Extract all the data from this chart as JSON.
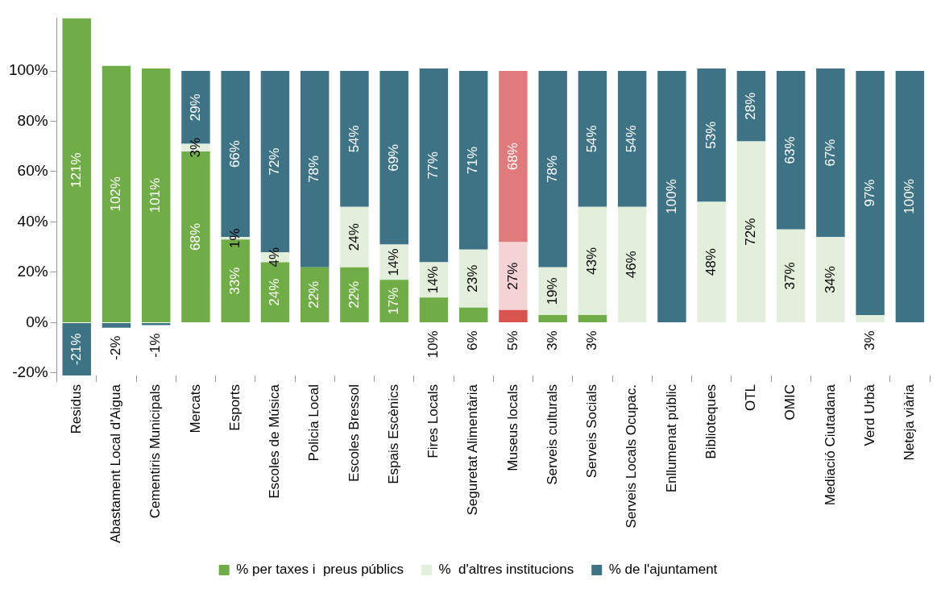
{
  "chart_data": {
    "type": "bar",
    "stacked": true,
    "categories": [
      "Residus",
      "Abastament Local d'Aigua",
      "Cementiris Municipals",
      "Mercats",
      "Esports",
      "Escoles de Música",
      "Policia Local",
      "Escoles Bressol",
      "Espais Escènics",
      "Fires Locals",
      "Seguretat Alimentària",
      "Museus locals",
      "Serveis culturals",
      "Serveis Socials",
      "Serveis Locals Ocupac.",
      "Enllumenat públic",
      "Biblioteques",
      "OTL",
      "OMIC",
      "Mediació Ciutadana",
      "Verd Urbà",
      "Neteja viària"
    ],
    "series": [
      {
        "name": "% per taxes i  preus públics",
        "color": "#70ad47",
        "colors": [
          "#70ad47",
          "#70ad47",
          "#70ad47",
          "#70ad47",
          "#70ad47",
          "#70ad47",
          "#70ad47",
          "#70ad47",
          "#70ad47",
          "#70ad47",
          "#70ad47",
          "#d9534f",
          "#70ad47",
          "#70ad47",
          "#70ad47",
          "#70ad47",
          "#70ad47",
          "#70ad47",
          "#70ad47",
          "#70ad47",
          "#70ad47",
          "#70ad47"
        ],
        "values": [
          121,
          102,
          101,
          68,
          33,
          24,
          22,
          22,
          17,
          10,
          6,
          5,
          3,
          3,
          0,
          0,
          0,
          0,
          0,
          0,
          0,
          0
        ],
        "value_labels": [
          "121%",
          "102%",
          "101%",
          "68%",
          "33%",
          "24%",
          "22%",
          "22%",
          "17%",
          "10%",
          "6%",
          "5%",
          "3%",
          "3%",
          null,
          null,
          null,
          null,
          null,
          null,
          null,
          null
        ]
      },
      {
        "name": "%  d'altres institucions",
        "color": "#e2efda",
        "colors": [
          "#e2efda",
          "#e2efda",
          "#e2efda",
          "#e2efda",
          "#e2efda",
          "#e2efda",
          "#e2efda",
          "#e2efda",
          "#e2efda",
          "#e2efda",
          "#e2efda",
          "#f5d3d5",
          "#e2efda",
          "#e2efda",
          "#e2efda",
          "#e2efda",
          "#e2efda",
          "#e2efda",
          "#e2efda",
          "#e2efda",
          "#e2efda",
          "#e2efda"
        ],
        "values": [
          0,
          0,
          0,
          3,
          1,
          4,
          0,
          24,
          14,
          14,
          23,
          27,
          19,
          43,
          46,
          0,
          48,
          72,
          37,
          34,
          3,
          0
        ],
        "value_labels": [
          null,
          null,
          null,
          "3%",
          "1%",
          "4%",
          null,
          "24%",
          "14%",
          "14%",
          "23%",
          "27%",
          "19%",
          "43%",
          "46%",
          null,
          "48%",
          "72%",
          "37%",
          "34%",
          "3%",
          null
        ]
      },
      {
        "name": "% de l'ajuntament",
        "color": "#3d7385",
        "colors": [
          "#3d7385",
          "#3d7385",
          "#3d7385",
          "#3d7385",
          "#3d7385",
          "#3d7385",
          "#3d7385",
          "#3d7385",
          "#3d7385",
          "#3d7385",
          "#3d7385",
          "#e07a7b",
          "#3d7385",
          "#3d7385",
          "#3d7385",
          "#3d7385",
          "#3d7385",
          "#3d7385",
          "#3d7385",
          "#3d7385",
          "#3d7385",
          "#3d7385"
        ],
        "values": [
          -21,
          -2,
          -1,
          29,
          66,
          72,
          78,
          54,
          69,
          77,
          71,
          68,
          78,
          54,
          54,
          100,
          53,
          28,
          63,
          67,
          97,
          100
        ],
        "value_labels": [
          "-21%",
          "-2%",
          "-1%",
          "29%",
          "66%",
          "72%",
          "78%",
          "54%",
          "69%",
          "77%",
          "71%",
          "68%",
          "78%",
          "54%",
          "54%",
          "100%",
          "53%",
          "28%",
          "63%",
          "67%",
          "97%",
          "100%"
        ]
      }
    ],
    "ylim": [
      -21,
      121
    ],
    "yticks": [
      {
        "value": -20,
        "label": "-20%"
      },
      {
        "value": 0,
        "label": "0%"
      },
      {
        "value": 20,
        "label": "20%"
      },
      {
        "value": 40,
        "label": "40%"
      },
      {
        "value": 60,
        "label": "60%"
      },
      {
        "value": 80,
        "label": "80%"
      },
      {
        "value": 100,
        "label": "100%"
      }
    ],
    "grid": false,
    "legend": "bottom"
  }
}
